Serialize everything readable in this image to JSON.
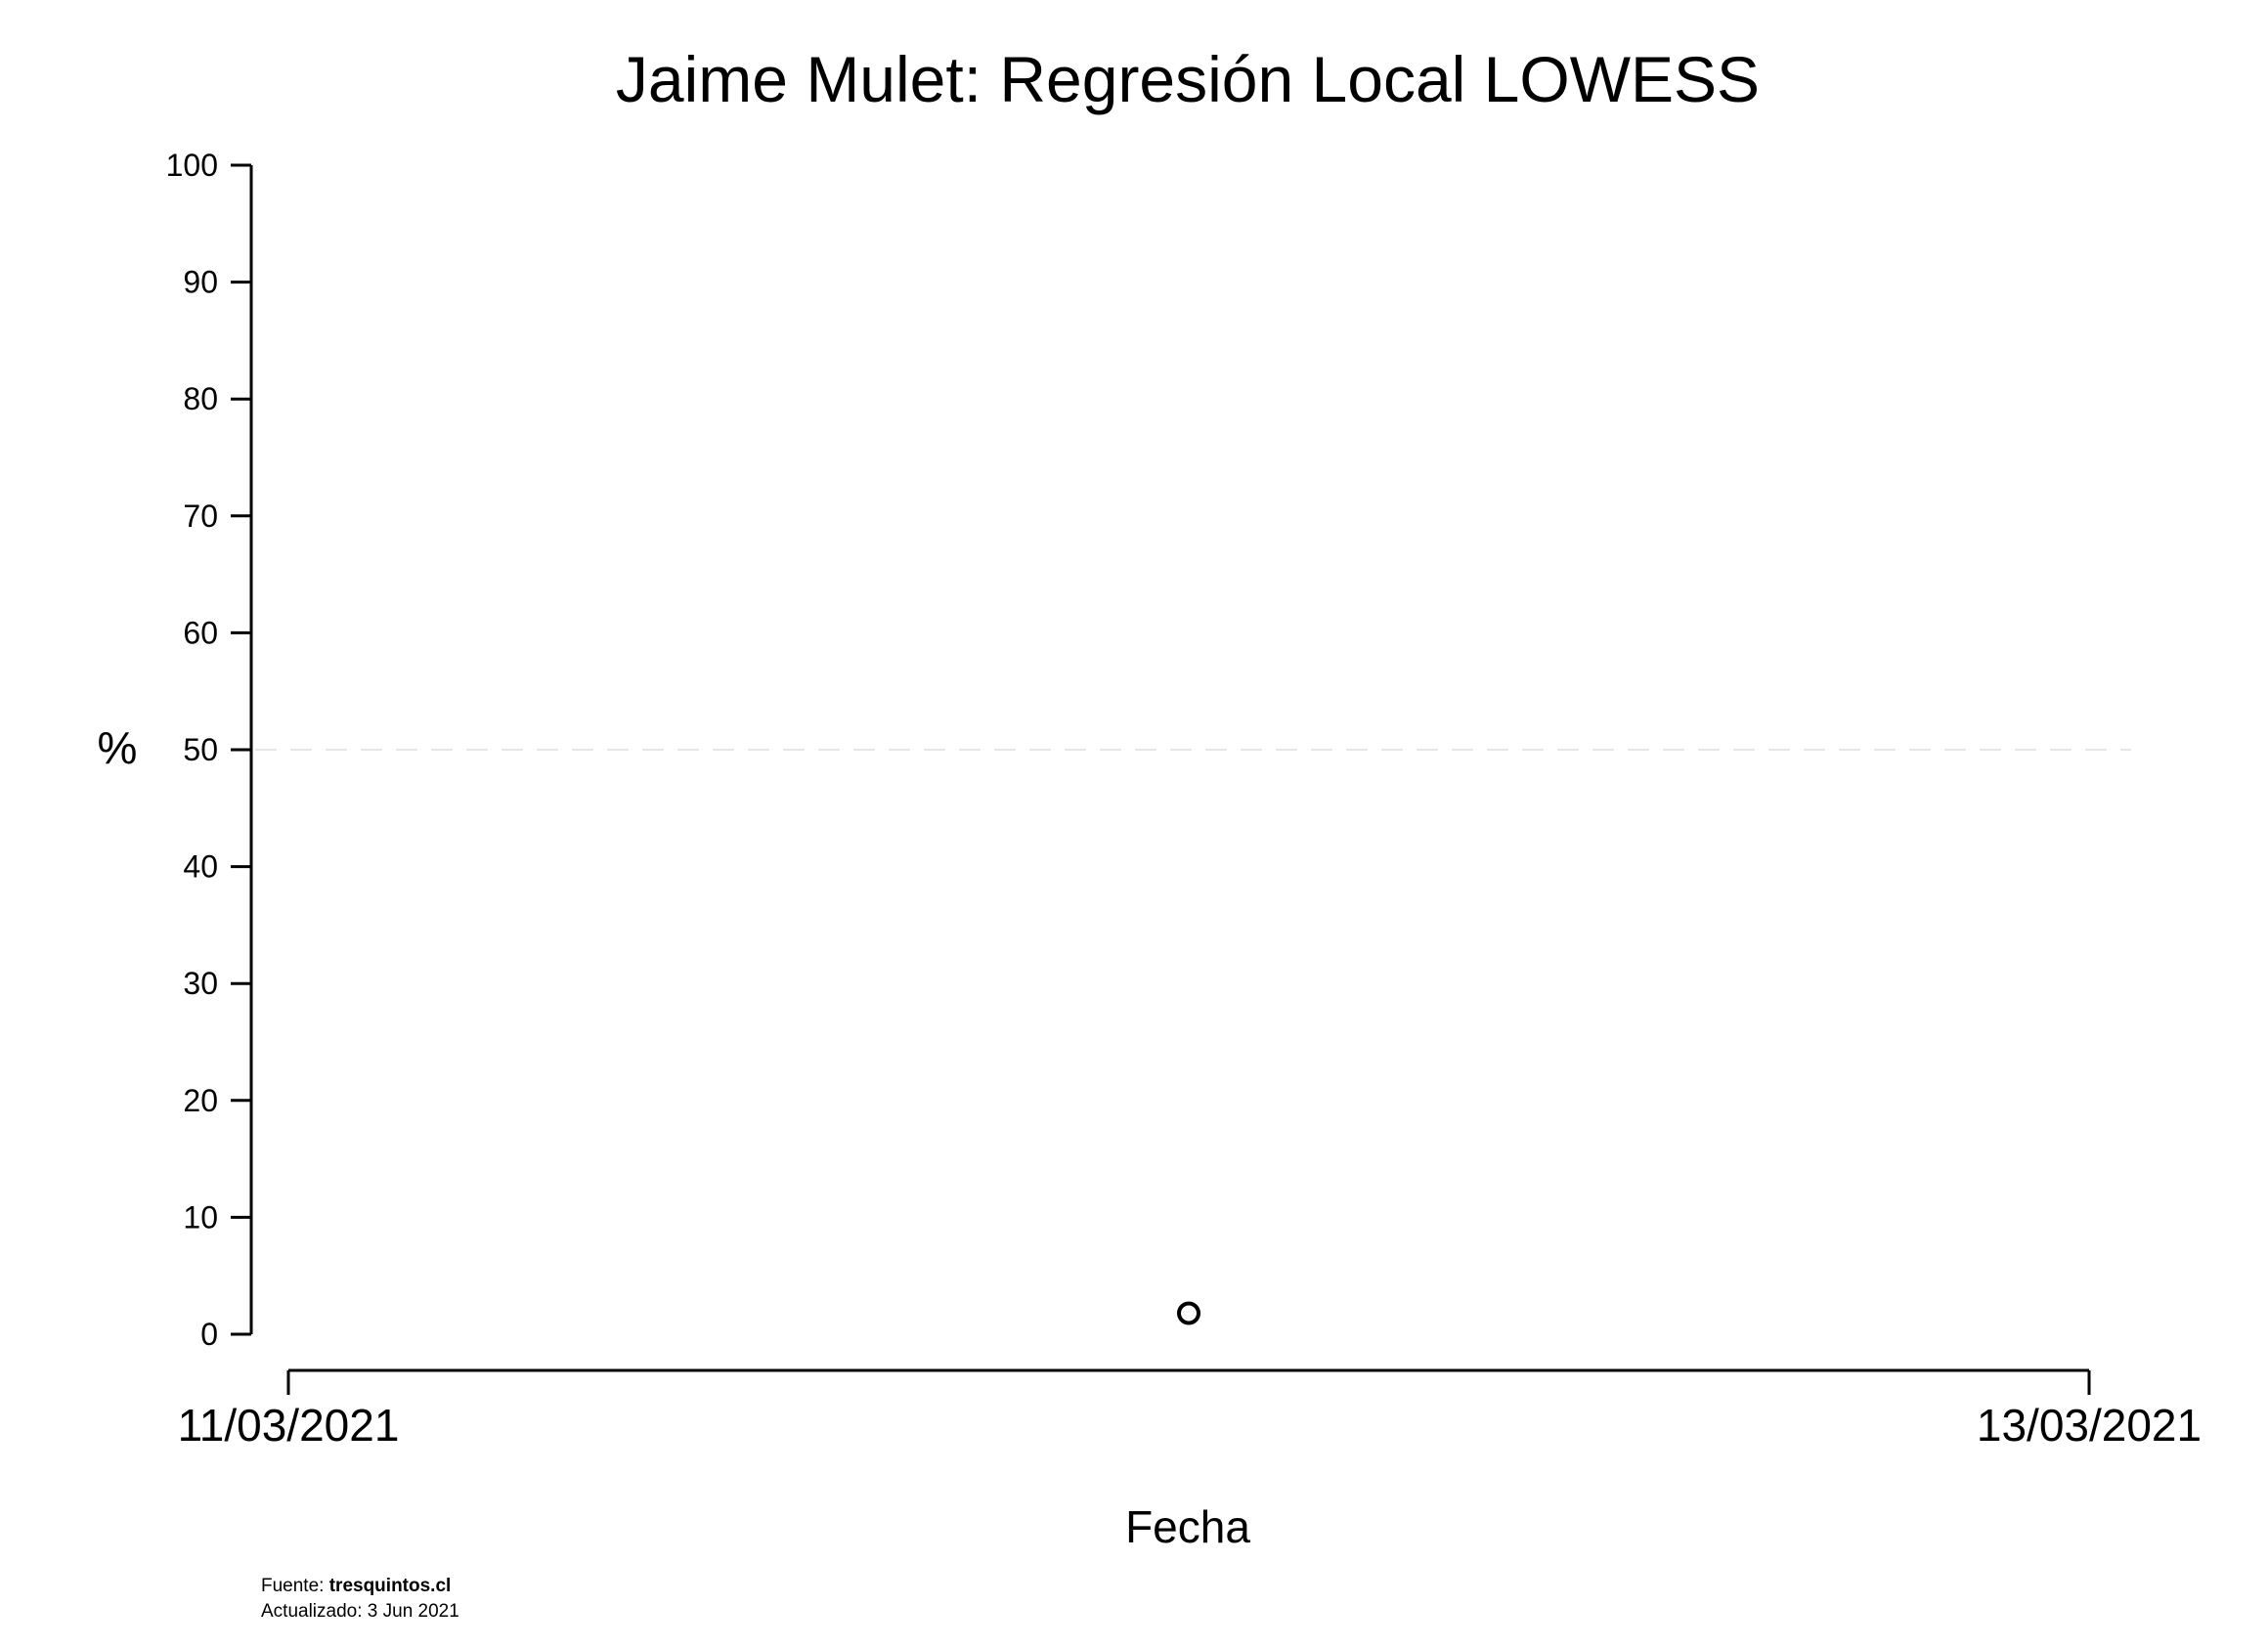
{
  "chart_data": {
    "type": "scatter",
    "title": "Jaime Mulet: Regresión Local LOWESS",
    "xlabel": "Fecha",
    "ylabel": "%",
    "xlim": [
      "11/03/2021",
      "13/03/2021"
    ],
    "ylim": [
      0,
      100
    ],
    "y_ticks": [
      "0",
      "10",
      "20",
      "30",
      "40",
      "50",
      "60",
      "70",
      "80",
      "90",
      "100"
    ],
    "x_ticks": [
      "11/03/2021",
      "13/03/2021"
    ],
    "reference_line": {
      "y": 50,
      "style": "dashed",
      "color": "#e6e6e6"
    },
    "grid": false,
    "points": [
      {
        "x": "12/03/2021",
        "y": 1.8
      }
    ],
    "colors": {
      "axis": "#000000",
      "point": "#000000",
      "reference": "#e6e6e6"
    }
  },
  "footer": {
    "source_prefix": "Fuente: ",
    "source_site": "tresquintos.cl",
    "updated": "Actualizado: 3 Jun 2021"
  }
}
